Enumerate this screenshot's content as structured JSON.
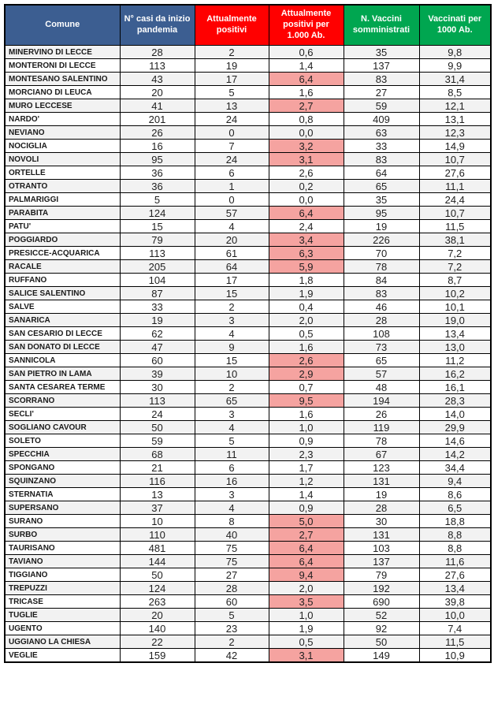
{
  "colors": {
    "header_blue": "#3C5E91",
    "header_red": "#FF0000",
    "header_green": "#00A650",
    "header_text": "#FFFFFF",
    "highlight_pink": "#F5A3A0",
    "row_stripe_gray": "#F2F2F2",
    "border_black": "#000000"
  },
  "chart_data": {
    "type": "table",
    "title": "",
    "columns": [
      {
        "label": "Comune",
        "color": "#3C5E91"
      },
      {
        "label": "N° casi da inizio pandemia",
        "color": "#3C5E91"
      },
      {
        "label": "Attualmente positivi",
        "color": "#FF0000"
      },
      {
        "label": "Attualmente positivi per 1.000 Ab.",
        "color": "#FF0000"
      },
      {
        "label": "N. Vaccini somministrati",
        "color": "#00A650"
      },
      {
        "label": "Vaccinati per 1000 Ab.",
        "color": "#00A650"
      }
    ],
    "rows": [
      {
        "cells": [
          "MINERVINO DI LECCE",
          "28",
          "2",
          "0,6",
          "35",
          "9,8"
        ],
        "highlight": false
      },
      {
        "cells": [
          "MONTERONI DI LECCE",
          "113",
          "19",
          "1,4",
          "137",
          "9,9"
        ],
        "highlight": false
      },
      {
        "cells": [
          "MONTESANO SALENTINO",
          "43",
          "17",
          "6,4",
          "83",
          "31,4"
        ],
        "highlight": true
      },
      {
        "cells": [
          "MORCIANO DI LEUCA",
          "20",
          "5",
          "1,6",
          "27",
          "8,5"
        ],
        "highlight": false
      },
      {
        "cells": [
          "MURO LECCESE",
          "41",
          "13",
          "2,7",
          "59",
          "12,1"
        ],
        "highlight": true
      },
      {
        "cells": [
          "NARDO'",
          "201",
          "24",
          "0,8",
          "409",
          "13,1"
        ],
        "highlight": false
      },
      {
        "cells": [
          "NEVIANO",
          "26",
          "0",
          "0,0",
          "63",
          "12,3"
        ],
        "highlight": false
      },
      {
        "cells": [
          "NOCIGLIA",
          "16",
          "7",
          "3,2",
          "33",
          "14,9"
        ],
        "highlight": true
      },
      {
        "cells": [
          "NOVOLI",
          "95",
          "24",
          "3,1",
          "83",
          "10,7"
        ],
        "highlight": true
      },
      {
        "cells": [
          "ORTELLE",
          "36",
          "6",
          "2,6",
          "64",
          "27,6"
        ],
        "highlight": false
      },
      {
        "cells": [
          "OTRANTO",
          "36",
          "1",
          "0,2",
          "65",
          "11,1"
        ],
        "highlight": false
      },
      {
        "cells": [
          "PALMARIGGI",
          "5",
          "0",
          "0,0",
          "35",
          "24,4"
        ],
        "highlight": false
      },
      {
        "cells": [
          "PARABITA",
          "124",
          "57",
          "6,4",
          "95",
          "10,7"
        ],
        "highlight": true
      },
      {
        "cells": [
          "PATU'",
          "15",
          "4",
          "2,4",
          "19",
          "11,5"
        ],
        "highlight": false
      },
      {
        "cells": [
          "POGGIARDO",
          "79",
          "20",
          "3,4",
          "226",
          "38,1"
        ],
        "highlight": true
      },
      {
        "cells": [
          "PRESICCE-ACQUARICA",
          "113",
          "61",
          "6,3",
          "70",
          "7,2"
        ],
        "highlight": true
      },
      {
        "cells": [
          "RACALE",
          "205",
          "64",
          "5,9",
          "78",
          "7,2"
        ],
        "highlight": true
      },
      {
        "cells": [
          "RUFFANO",
          "104",
          "17",
          "1,8",
          "84",
          "8,7"
        ],
        "highlight": false
      },
      {
        "cells": [
          "SALICE SALENTINO",
          "87",
          "15",
          "1,9",
          "83",
          "10,2"
        ],
        "highlight": false
      },
      {
        "cells": [
          "SALVE",
          "33",
          "2",
          "0,4",
          "46",
          "10,1"
        ],
        "highlight": false
      },
      {
        "cells": [
          "SANARICA",
          "19",
          "3",
          "2,0",
          "28",
          "19,0"
        ],
        "highlight": false
      },
      {
        "cells": [
          "SAN CESARIO DI LECCE",
          "62",
          "4",
          "0,5",
          "108",
          "13,4"
        ],
        "highlight": false
      },
      {
        "cells": [
          "SAN DONATO DI LECCE",
          "47",
          "9",
          "1,6",
          "73",
          "13,0"
        ],
        "highlight": false
      },
      {
        "cells": [
          "SANNICOLA",
          "60",
          "15",
          "2,6",
          "65",
          "11,2"
        ],
        "highlight": true
      },
      {
        "cells": [
          "SAN PIETRO IN LAMA",
          "39",
          "10",
          "2,9",
          "57",
          "16,2"
        ],
        "highlight": true
      },
      {
        "cells": [
          "SANTA CESAREA TERME",
          "30",
          "2",
          "0,7",
          "48",
          "16,1"
        ],
        "highlight": false
      },
      {
        "cells": [
          "SCORRANO",
          "113",
          "65",
          "9,5",
          "194",
          "28,3"
        ],
        "highlight": true
      },
      {
        "cells": [
          "SECLI'",
          "24",
          "3",
          "1,6",
          "26",
          "14,0"
        ],
        "highlight": false
      },
      {
        "cells": [
          "SOGLIANO CAVOUR",
          "50",
          "4",
          "1,0",
          "119",
          "29,9"
        ],
        "highlight": false
      },
      {
        "cells": [
          "SOLETO",
          "59",
          "5",
          "0,9",
          "78",
          "14,6"
        ],
        "highlight": false
      },
      {
        "cells": [
          "SPECCHIA",
          "68",
          "11",
          "2,3",
          "67",
          "14,2"
        ],
        "highlight": false
      },
      {
        "cells": [
          "SPONGANO",
          "21",
          "6",
          "1,7",
          "123",
          "34,4"
        ],
        "highlight": false
      },
      {
        "cells": [
          "SQUINZANO",
          "116",
          "16",
          "1,2",
          "131",
          "9,4"
        ],
        "highlight": false
      },
      {
        "cells": [
          "STERNATIA",
          "13",
          "3",
          "1,4",
          "19",
          "8,6"
        ],
        "highlight": false
      },
      {
        "cells": [
          "SUPERSANO",
          "37",
          "4",
          "0,9",
          "28",
          "6,5"
        ],
        "highlight": false
      },
      {
        "cells": [
          "SURANO",
          "10",
          "8",
          "5,0",
          "30",
          "18,8"
        ],
        "highlight": true
      },
      {
        "cells": [
          "SURBO",
          "110",
          "40",
          "2,7",
          "131",
          "8,8"
        ],
        "highlight": true
      },
      {
        "cells": [
          "TAURISANO",
          "481",
          "75",
          "6,4",
          "103",
          "8,8"
        ],
        "highlight": true
      },
      {
        "cells": [
          "TAVIANO",
          "144",
          "75",
          "6,4",
          "137",
          "11,6"
        ],
        "highlight": true
      },
      {
        "cells": [
          "TIGGIANO",
          "50",
          "27",
          "9,4",
          "79",
          "27,6"
        ],
        "highlight": true
      },
      {
        "cells": [
          "TREPUZZI",
          "124",
          "28",
          "2,0",
          "192",
          "13,4"
        ],
        "highlight": false
      },
      {
        "cells": [
          "TRICASE",
          "263",
          "60",
          "3,5",
          "690",
          "39,8"
        ],
        "highlight": true
      },
      {
        "cells": [
          "TUGLIE",
          "20",
          "5",
          "1,0",
          "52",
          "10,0"
        ],
        "highlight": false
      },
      {
        "cells": [
          "UGENTO",
          "140",
          "23",
          "1,9",
          "92",
          "7,4"
        ],
        "highlight": false
      },
      {
        "cells": [
          "UGGIANO LA CHIESA",
          "22",
          "2",
          "0,5",
          "50",
          "11,5"
        ],
        "highlight": false
      },
      {
        "cells": [
          "VEGLIE",
          "159",
          "42",
          "3,1",
          "149",
          "10,9"
        ],
        "highlight": true
      }
    ]
  }
}
